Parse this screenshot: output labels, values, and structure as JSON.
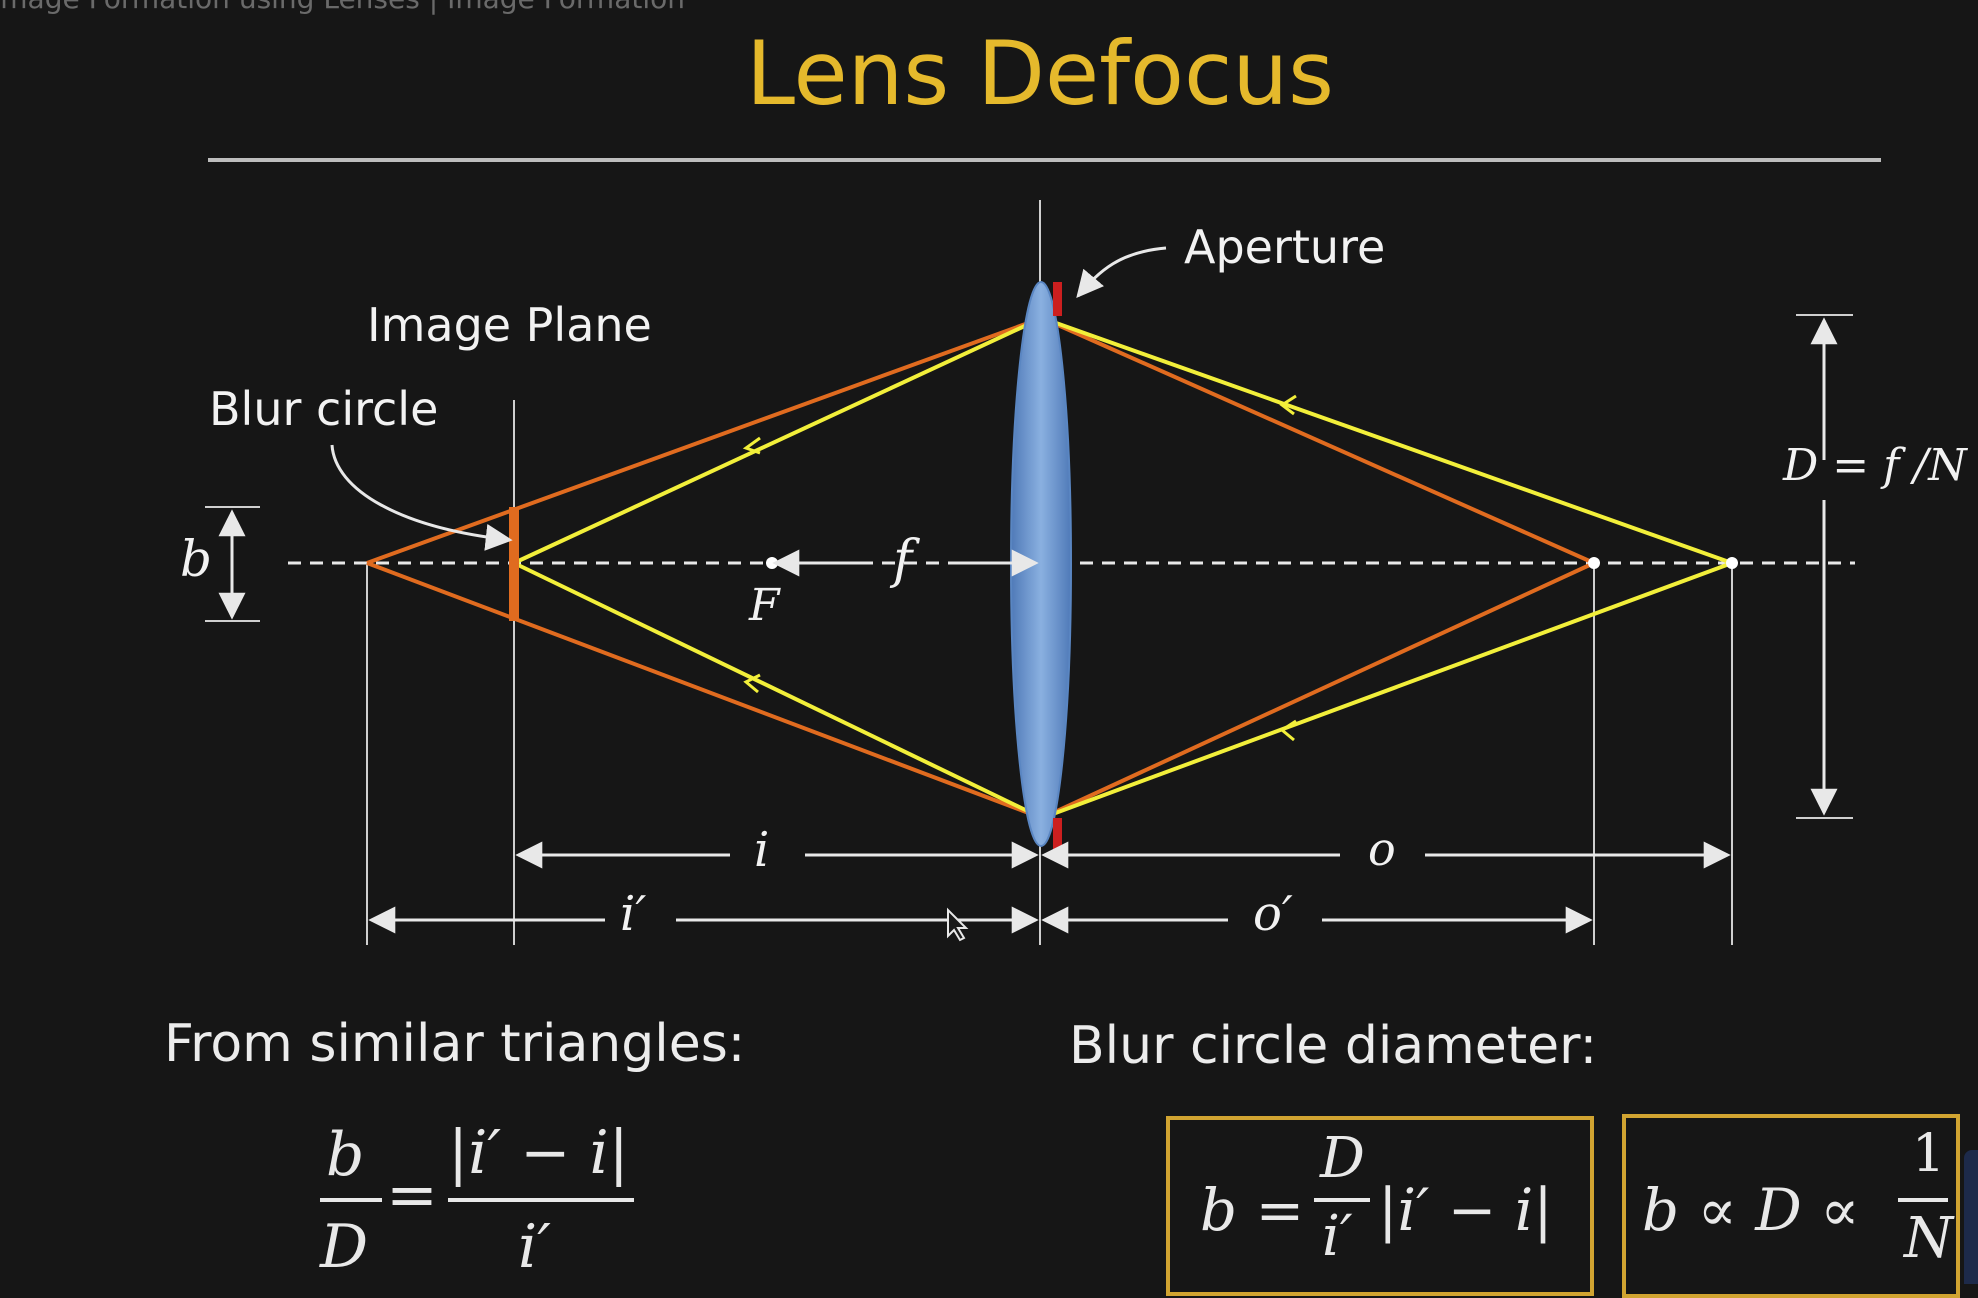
{
  "video_title": "Image Formation using Lenses | Image Formation",
  "slide": {
    "title": "Lens Defocus",
    "labels": {
      "aperture": "Aperture",
      "image_plane": "Image Plane",
      "blur_circle": "Blur circle",
      "b": "b",
      "F": "F",
      "f": "f",
      "i": "i",
      "i_prime": "i′",
      "o": "o",
      "o_prime": "o′",
      "D_eq": "D = f /N"
    },
    "left_section": {
      "heading": "From similar triangles:",
      "eq_num_left": "b",
      "eq_den_left": "D",
      "eq_equals": "=",
      "eq_num_right": "|i′ − i|",
      "eq_den_right": "i′"
    },
    "right_section": {
      "heading": "Blur circle diameter:",
      "box1_b": "b =",
      "box1_num": "D",
      "box1_den": "i′",
      "box1_rest": "|i′ − i|",
      "box2_expr": "b ∝ D ∝",
      "box2_num": "1",
      "box2_den": "N"
    },
    "colors": {
      "title": "#e5b92c",
      "orange_rays": "#e06b1f",
      "yellow_rays": "#f2ef3a",
      "lens": "#6f9ad2",
      "aperture_stop": "#cc1f1f",
      "box_border": "#d1a431"
    }
  }
}
